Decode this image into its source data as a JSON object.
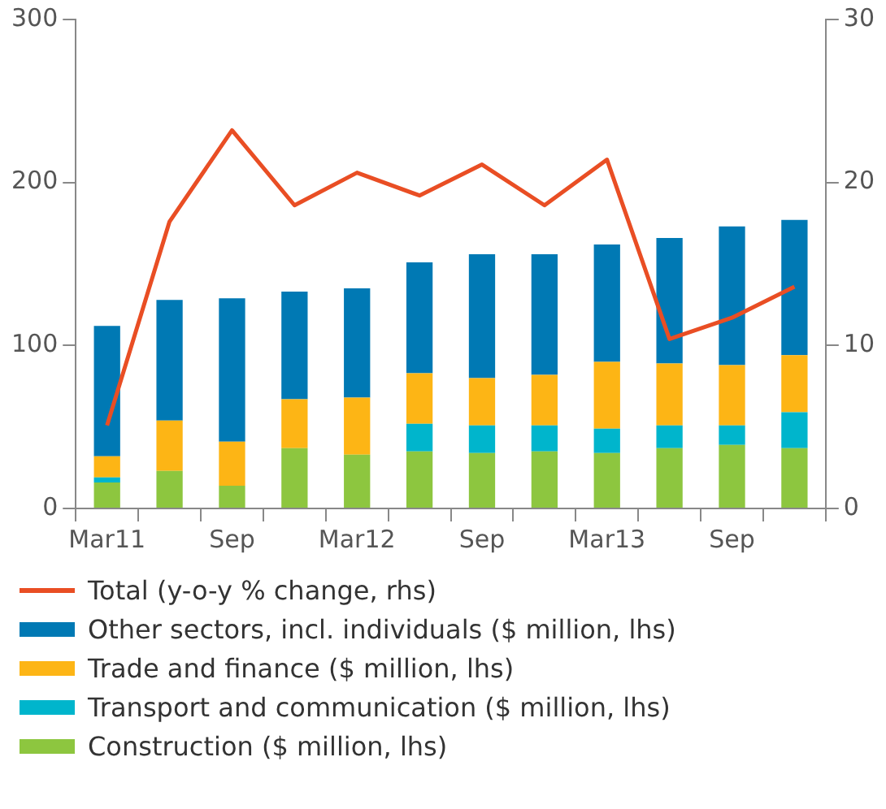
{
  "chart_data": {
    "type": "bar",
    "stacked": true,
    "categories": [
      "Mar11",
      null,
      "Sep",
      null,
      "Mar12",
      null,
      "Sep",
      null,
      "Mar13",
      null,
      "Sep",
      null
    ],
    "series": [
      {
        "name": "Construction ($ million, lhs)",
        "color": "#8dc63f",
        "values": [
          16,
          23,
          14,
          37,
          33,
          35,
          34,
          35,
          34,
          37,
          39,
          37
        ]
      },
      {
        "name": "Transport and communication ($ million, lhs)",
        "color": "#00b5cc",
        "values": [
          3,
          0,
          0,
          0,
          0,
          17,
          17,
          16,
          15,
          14,
          12,
          22
        ]
      },
      {
        "name": "Trade and finance ($ million, lhs)",
        "color": "#fdb515",
        "values": [
          13,
          31,
          27,
          30,
          35,
          31,
          29,
          31,
          41,
          38,
          37,
          35
        ]
      },
      {
        "name": "Other sectors, incl. individuals ($ million, lhs)",
        "color": "#0079b4",
        "values": [
          80,
          74,
          88,
          66,
          67,
          68,
          76,
          74,
          72,
          77,
          85,
          83
        ]
      },
      {
        "name": "Total (y-o-y % change, rhs)",
        "type": "line",
        "axis": "y2",
        "color": "#e94e24",
        "values": [
          5.1,
          17.6,
          23.2,
          18.6,
          20.6,
          19.2,
          21.1,
          18.6,
          21.4,
          10.4,
          11.7,
          13.6
        ]
      }
    ],
    "ylim": [
      0,
      300
    ],
    "yticks": [
      0,
      100,
      200,
      300
    ],
    "y2lim": [
      0,
      30
    ],
    "y2ticks": [
      0,
      10,
      20,
      30
    ],
    "grid": false,
    "legend": "bottom",
    "marker": "none"
  }
}
